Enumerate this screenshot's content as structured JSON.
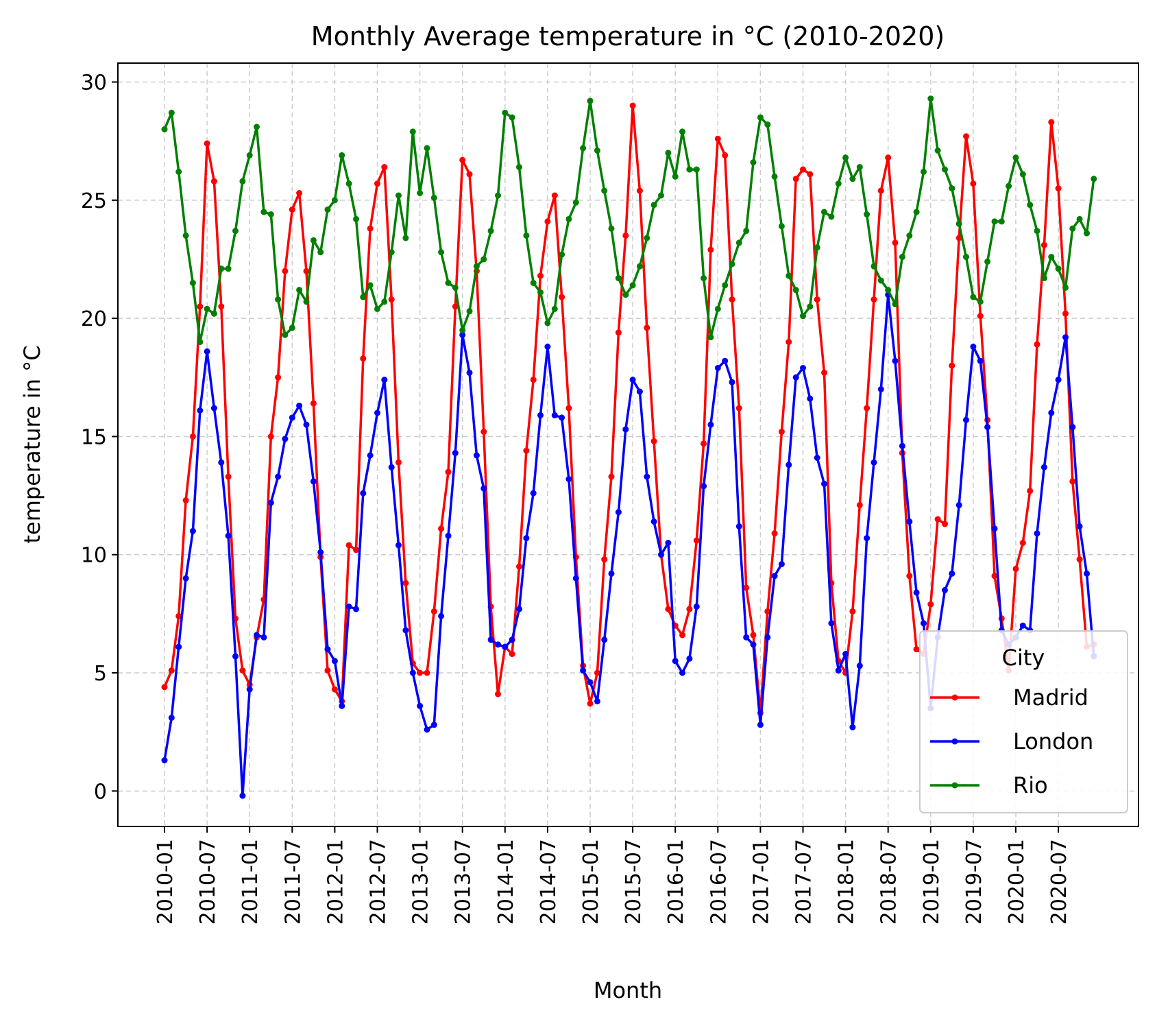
{
  "chart_data": {
    "type": "line",
    "title": "Monthly Average temperature in °C (2010-2020)",
    "xlabel": "Month",
    "ylabel": "temperature in °C",
    "ylim": [
      -1.5,
      30.8
    ],
    "yticks": [
      0,
      5,
      10,
      15,
      20,
      25,
      30
    ],
    "x_start": "2010-01",
    "x_end": "2020-12",
    "xticks": [
      "2010-01",
      "2010-07",
      "2011-01",
      "2011-07",
      "2012-01",
      "2012-07",
      "2013-01",
      "2013-07",
      "2014-01",
      "2014-07",
      "2015-01",
      "2015-07",
      "2016-01",
      "2016-07",
      "2017-01",
      "2017-07",
      "2018-01",
      "2018-07",
      "2019-01",
      "2019-07",
      "2020-01",
      "2020-07"
    ],
    "grid": true,
    "legend": {
      "title": "City",
      "position": "lower-right"
    },
    "series": [
      {
        "name": "Madrid",
        "color": "#ff0000",
        "values": [
          4.4,
          5.1,
          7.4,
          12.3,
          15.0,
          20.5,
          27.4,
          25.8,
          20.5,
          13.3,
          7.3,
          5.1,
          4.5,
          6.5,
          8.1,
          15.0,
          17.5,
          22.0,
          24.6,
          25.3,
          22.0,
          16.4,
          9.9,
          5.1,
          4.3,
          3.8,
          10.4,
          10.2,
          18.3,
          23.8,
          25.7,
          26.4,
          20.8,
          13.9,
          8.8,
          5.4,
          5.0,
          5.0,
          7.6,
          11.1,
          13.5,
          20.5,
          26.7,
          26.1,
          22.0,
          15.2,
          7.8,
          4.1,
          6.1,
          5.8,
          9.5,
          14.4,
          17.4,
          21.8,
          24.1,
          25.2,
          20.9,
          16.2,
          9.9,
          5.3,
          3.7,
          5.0,
          9.8,
          13.3,
          19.4,
          23.5,
          29.0,
          25.4,
          19.6,
          14.8,
          10.0,
          7.7,
          7.0,
          6.6,
          7.7,
          10.6,
          14.7,
          22.9,
          27.6,
          26.9,
          20.8,
          16.2,
          8.6,
          6.6,
          3.3,
          7.6,
          10.9,
          15.2,
          19.0,
          25.9,
          26.3,
          26.1,
          20.8,
          17.7,
          8.8,
          5.5,
          5.0,
          7.6,
          12.1,
          16.2,
          20.8,
          25.4,
          26.8,
          23.2,
          14.3,
          9.1,
          6.0,
          5.8,
          7.9,
          11.5,
          11.3,
          18.0,
          23.4,
          27.7,
          25.7,
          20.1,
          15.7,
          9.1,
          7.3,
          5.1,
          9.4,
          10.5,
          12.7,
          18.9,
          23.1,
          28.3,
          25.5,
          20.2,
          13.1,
          9.8,
          6.1,
          6.2
        ]
      },
      {
        "name": "London",
        "color": "#0000ff",
        "values": [
          1.3,
          3.1,
          6.1,
          9.0,
          11.0,
          16.1,
          18.6,
          16.2,
          13.9,
          10.8,
          5.7,
          -0.2,
          4.3,
          6.6,
          6.5,
          12.2,
          13.3,
          14.9,
          15.8,
          16.3,
          15.5,
          13.1,
          10.1,
          6.0,
          5.5,
          3.6,
          7.8,
          7.7,
          12.6,
          14.2,
          16.0,
          17.4,
          13.7,
          10.4,
          6.8,
          5.0,
          3.6,
          2.6,
          2.8,
          7.4,
          10.8,
          14.3,
          19.3,
          17.7,
          14.2,
          12.8,
          6.4,
          6.2,
          6.1,
          6.4,
          7.7,
          10.7,
          12.6,
          15.9,
          18.8,
          15.9,
          15.8,
          13.2,
          9.0,
          5.1,
          4.6,
          3.8,
          6.4,
          9.2,
          11.8,
          15.3,
          17.4,
          16.9,
          13.3,
          11.4,
          10.0,
          10.5,
          5.5,
          5.0,
          5.6,
          7.8,
          12.9,
          15.5,
          17.9,
          18.2,
          17.3,
          11.2,
          6.5,
          6.2,
          2.8,
          6.5,
          9.1,
          9.6,
          13.8,
          17.5,
          17.9,
          16.6,
          14.1,
          13.0,
          7.1,
          5.1,
          5.8,
          2.7,
          5.3,
          10.7,
          13.9,
          17.0,
          21.0,
          18.2,
          14.6,
          11.4,
          8.4,
          7.1,
          3.5,
          6.5,
          8.5,
          9.2,
          12.1,
          15.7,
          18.8,
          18.2,
          15.4,
          11.1,
          6.8,
          6.2,
          6.5,
          7.0,
          6.8,
          10.9,
          13.7,
          16.0,
          17.4,
          19.2,
          15.4,
          11.2,
          9.2,
          5.7
        ]
      },
      {
        "name": "Rio",
        "color": "#008000",
        "values": [
          28.0,
          28.7,
          26.2,
          23.5,
          21.5,
          19.0,
          20.4,
          20.2,
          22.1,
          22.1,
          23.7,
          25.8,
          26.9,
          28.1,
          24.5,
          24.4,
          20.8,
          19.3,
          19.6,
          21.2,
          20.7,
          23.3,
          22.8,
          24.6,
          25.0,
          26.9,
          25.7,
          24.2,
          20.9,
          21.4,
          20.4,
          20.7,
          22.8,
          25.2,
          23.4,
          27.9,
          25.3,
          27.2,
          25.1,
          22.8,
          21.5,
          21.3,
          19.5,
          20.3,
          22.2,
          22.5,
          23.7,
          25.2,
          28.7,
          28.5,
          26.4,
          23.5,
          21.5,
          21.1,
          19.8,
          20.4,
          22.7,
          24.2,
          24.9,
          27.2,
          29.2,
          27.1,
          25.4,
          23.8,
          21.7,
          21.0,
          21.4,
          22.2,
          23.4,
          24.8,
          25.2,
          27.0,
          26.0,
          27.9,
          26.3,
          26.3,
          21.7,
          19.2,
          20.4,
          21.4,
          22.3,
          23.2,
          23.7,
          26.6,
          28.5,
          28.2,
          26.0,
          23.9,
          21.8,
          21.2,
          20.1,
          20.5,
          23.0,
          24.5,
          24.3,
          25.7,
          26.8,
          25.9,
          26.4,
          24.4,
          22.2,
          21.6,
          21.2,
          20.6,
          22.6,
          23.5,
          24.5,
          26.2,
          29.3,
          27.1,
          26.3,
          25.5,
          24.0,
          22.6,
          20.9,
          20.7,
          22.4,
          24.1,
          24.1,
          25.6,
          26.8,
          26.1,
          24.8,
          23.7,
          21.7,
          22.6,
          22.1,
          21.3,
          23.8,
          24.2,
          23.6,
          25.9
        ]
      }
    ]
  }
}
